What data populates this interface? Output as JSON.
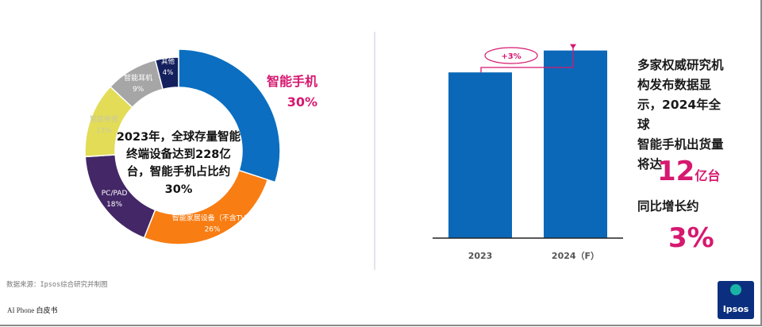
{
  "chart_data": [
    {
      "type": "pie",
      "donut": true,
      "center_text": "2023年，全球存量智能终端设备达到228亿台，智能手机占比约30%",
      "center_lines": [
        "2023年，全球存量智能",
        "终端设备达到228亿",
        "台，智能手机占比约",
        "30%"
      ],
      "slices": [
        {
          "name": "智能手机",
          "label": "30%",
          "value": 30,
          "color": "#0b6ec0"
        },
        {
          "name": "智能家居设备（不含TV）",
          "label": "26%",
          "value": 26,
          "color": "#f87d13"
        },
        {
          "name": "PC/PAD",
          "label": "18%",
          "value": 18,
          "color": "#432766"
        },
        {
          "name": "智能电视",
          "label": "13%",
          "value": 13,
          "color": "#e3dc57"
        },
        {
          "name": "智能耳机",
          "label": "9%",
          "value": 9,
          "color": "#a6a6a6"
        },
        {
          "name": "其他",
          "label": "4%",
          "value": 4,
          "color": "#14205e"
        }
      ]
    },
    {
      "type": "bar",
      "categories": [
        "2023",
        "2024（F）"
      ],
      "values": [
        11.65,
        12
      ],
      "ylim": [
        9,
        12.3
      ],
      "color": "#0b68b8",
      "annotation": "+3%",
      "annotation_color": "#d6186f",
      "grid": false
    }
  ],
  "side": {
    "lines": [
      "多家权威研究机",
      "构发布数据显",
      "示，2024年全球",
      "智能手机出货量",
      "将达"
    ],
    "big_number": "12",
    "big_unit": "亿台",
    "yoy_label": "同比增长约",
    "yoy_value": "3%"
  },
  "source": "数据来源：Ipsos综合研究并制图",
  "footer": {
    "prefix": "AI  Phone ",
    "suffix": "白皮书"
  },
  "logo": "Ipsos",
  "accent": "#d6186f"
}
